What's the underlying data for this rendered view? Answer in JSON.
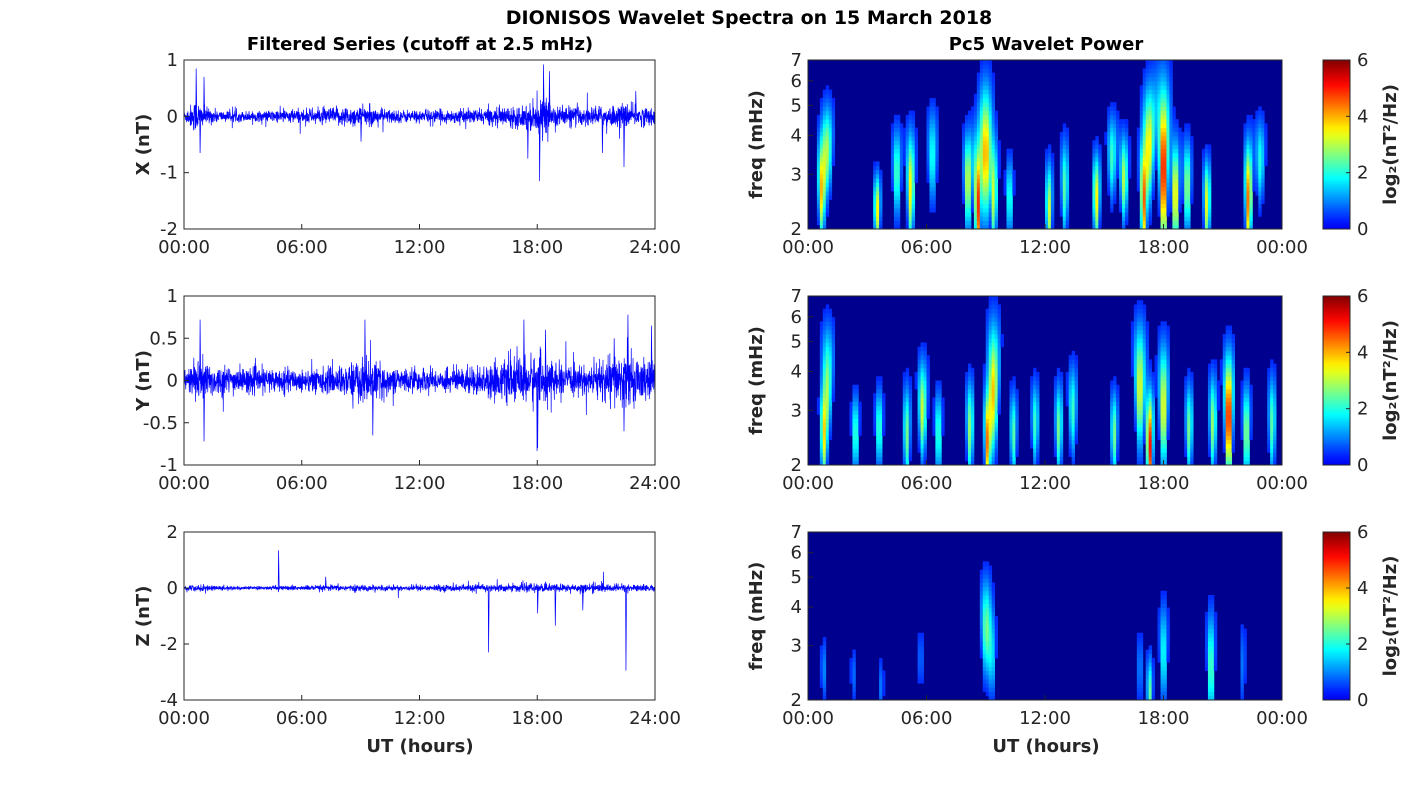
{
  "figure": {
    "title": "DIONISOS Wavelet Spectra on 15 March 2018",
    "left_title": "Filtered Series (cutoff at 2.5 mHz)",
    "right_title": "Pc5 Wavelet Power",
    "xlabel": "UT (hours)"
  },
  "colors": {
    "trace": "#0000ff",
    "spectrum_background": "#00008f",
    "axis": "#262626"
  },
  "chart_data": [
    {
      "type": "line",
      "name": "x-series",
      "ylabel": "X (nT)",
      "xlim": [
        0,
        24
      ],
      "ylim": [
        -2,
        1
      ],
      "x_ticks": [
        "00:00",
        "06:00",
        "12:00",
        "18:00",
        "24:00"
      ],
      "y_ticks": [
        "-2",
        "-1",
        "0",
        "1"
      ],
      "series": [
        {
          "noise_amp": 0.09,
          "envelope": [
            [
              0,
              0.1
            ],
            [
              0.6,
              0.32
            ],
            [
              1.0,
              0.18
            ],
            [
              2,
              0.1
            ],
            [
              4,
              0.1
            ],
            [
              5,
              0.13
            ],
            [
              7,
              0.15
            ],
            [
              8.5,
              0.2
            ],
            [
              9.5,
              0.17
            ],
            [
              11,
              0.12
            ],
            [
              13,
              0.12
            ],
            [
              15,
              0.14
            ],
            [
              17,
              0.2
            ],
            [
              18.2,
              0.32
            ],
            [
              19,
              0.2
            ],
            [
              21,
              0.18
            ],
            [
              22.5,
              0.22
            ],
            [
              24,
              0.16
            ]
          ],
          "spikes": [
            [
              0.6,
              0.85
            ],
            [
              0.8,
              -0.65
            ],
            [
              1.0,
              0.7
            ],
            [
              9.0,
              -0.45
            ],
            [
              17.5,
              -0.75
            ],
            [
              18.1,
              -1.15
            ],
            [
              18.3,
              0.92
            ],
            [
              18.6,
              0.8
            ],
            [
              21.3,
              -0.65
            ],
            [
              22.4,
              -0.9
            ],
            [
              23.0,
              0.45
            ]
          ]
        }
      ]
    },
    {
      "type": "line",
      "name": "y-series",
      "ylabel": "Y (nT)",
      "xlim": [
        0,
        24
      ],
      "ylim": [
        -1,
        1
      ],
      "x_ticks": [
        "00:00",
        "06:00",
        "12:00",
        "18:00",
        "24:00"
      ],
      "y_ticks": [
        "-1",
        "-0.5",
        "0",
        "0.5",
        "1"
      ],
      "series": [
        {
          "noise_amp": 0.09,
          "envelope": [
            [
              0,
              0.12
            ],
            [
              0.8,
              0.3
            ],
            [
              1.5,
              0.2
            ],
            [
              3,
              0.16
            ],
            [
              6,
              0.14
            ],
            [
              8,
              0.18
            ],
            [
              9.2,
              0.3
            ],
            [
              10.5,
              0.16
            ],
            [
              13,
              0.14
            ],
            [
              15,
              0.18
            ],
            [
              17,
              0.28
            ],
            [
              18,
              0.35
            ],
            [
              19,
              0.2
            ],
            [
              20.5,
              0.16
            ],
            [
              21.5,
              0.3
            ],
            [
              22.5,
              0.35
            ],
            [
              24,
              0.2
            ]
          ],
          "spikes": [
            [
              0.8,
              0.72
            ],
            [
              1.0,
              -0.72
            ],
            [
              9.2,
              0.72
            ],
            [
              9.6,
              -0.65
            ],
            [
              17.3,
              0.72
            ],
            [
              18.0,
              -0.8
            ],
            [
              18.4,
              0.6
            ],
            [
              21.9,
              0.5
            ],
            [
              22.6,
              0.78
            ],
            [
              22.4,
              -0.6
            ],
            [
              23.8,
              0.65
            ]
          ]
        }
      ]
    },
    {
      "type": "line",
      "name": "z-series",
      "ylabel": "Z (nT)",
      "xlim": [
        0,
        24
      ],
      "ylim": [
        -4,
        2
      ],
      "x_ticks": [
        "00:00",
        "06:00",
        "12:00",
        "18:00",
        "24:00"
      ],
      "y_ticks": [
        "-4",
        "-2",
        "0",
        "2"
      ],
      "series": [
        {
          "noise_amp": 0.05,
          "envelope": [
            [
              0,
              0.12
            ],
            [
              1,
              0.12
            ],
            [
              3,
              0.06
            ],
            [
              5,
              0.08
            ],
            [
              8,
              0.12
            ],
            [
              10,
              0.1
            ],
            [
              13,
              0.12
            ],
            [
              16,
              0.14
            ],
            [
              18,
              0.16
            ],
            [
              21,
              0.16
            ],
            [
              24,
              0.12
            ]
          ],
          "spikes": [
            [
              4.8,
              1.35
            ],
            [
              7.2,
              0.4
            ],
            [
              15.5,
              -2.3
            ],
            [
              18.0,
              -0.9
            ],
            [
              18.9,
              -1.35
            ],
            [
              20.3,
              -0.8
            ],
            [
              22.5,
              -2.95
            ]
          ]
        }
      ]
    },
    {
      "type": "heatmap",
      "name": "x-wavelet",
      "ylabel": "freq (mHz)",
      "yscale": "log",
      "xlim": [
        0,
        24
      ],
      "ylim": [
        2,
        7
      ],
      "x_ticks": [
        "00:00",
        "06:00",
        "12:00",
        "18:00",
        "00:00"
      ],
      "y_ticks": [
        "2",
        "3",
        "4",
        "5",
        "6",
        "7"
      ],
      "colorbar": {
        "label": "log₂(nT²/Hz)",
        "ticks": [
          "0",
          "2",
          "4",
          "6"
        ],
        "range": [
          0,
          6
        ]
      },
      "blobs": [
        [
          0.7,
          2.7,
          1.0,
          4.0
        ],
        [
          1.0,
          3.6,
          0.9,
          2.5
        ],
        [
          3.5,
          2.3,
          0.5,
          3.6
        ],
        [
          4.5,
          3.0,
          0.9,
          2.4
        ],
        [
          5.2,
          2.7,
          1.2,
          3.6
        ],
        [
          6.3,
          3.4,
          1.0,
          2.0
        ],
        [
          8.1,
          2.8,
          1.0,
          3.4
        ],
        [
          8.6,
          2.4,
          1.5,
          5.0
        ],
        [
          9.0,
          3.4,
          1.7,
          4.0
        ],
        [
          9.4,
          2.6,
          1.2,
          3.2
        ],
        [
          10.2,
          2.5,
          0.7,
          2.2
        ],
        [
          12.2,
          2.3,
          0.9,
          3.2
        ],
        [
          13.0,
          2.7,
          1.0,
          2.4
        ],
        [
          14.6,
          2.5,
          0.8,
          3.6
        ],
        [
          15.4,
          3.4,
          0.8,
          2.2
        ],
        [
          16.0,
          2.9,
          0.8,
          3.0
        ],
        [
          17.0,
          2.5,
          1.3,
          4.6
        ],
        [
          17.3,
          3.8,
          1.3,
          3.2
        ],
        [
          18.0,
          3.0,
          2.2,
          5.5
        ],
        [
          18.6,
          2.5,
          1.2,
          4.0
        ],
        [
          19.2,
          2.7,
          0.9,
          3.0
        ],
        [
          20.2,
          2.4,
          0.8,
          3.4
        ],
        [
          22.3,
          2.5,
          1.2,
          4.5
        ],
        [
          22.9,
          3.3,
          0.8,
          2.0
        ]
      ]
    },
    {
      "type": "heatmap",
      "name": "y-wavelet",
      "ylabel": "freq (mHz)",
      "yscale": "log",
      "xlim": [
        0,
        24
      ],
      "ylim": [
        2,
        7
      ],
      "x_ticks": [
        "00:00",
        "06:00",
        "12:00",
        "18:00",
        "00:00"
      ],
      "y_ticks": [
        "2",
        "3",
        "4",
        "5",
        "6",
        "7"
      ],
      "colorbar": {
        "label": "log₂(nT²/Hz)",
        "ticks": [
          "0",
          "2",
          "4",
          "6"
        ],
        "range": [
          0,
          6
        ]
      },
      "blobs": [
        [
          0.8,
          2.5,
          0.9,
          3.6
        ],
        [
          1.0,
          3.8,
          1.2,
          2.4
        ],
        [
          2.4,
          2.5,
          0.7,
          2.4
        ],
        [
          3.6,
          2.6,
          0.7,
          2.4
        ],
        [
          5.0,
          2.5,
          1.0,
          2.6
        ],
        [
          5.8,
          3.0,
          1.0,
          3.2
        ],
        [
          6.6,
          2.5,
          0.8,
          2.4
        ],
        [
          8.2,
          2.6,
          1.0,
          2.8
        ],
        [
          9.1,
          2.4,
          1.0,
          4.5
        ],
        [
          9.4,
          3.5,
          1.6,
          3.6
        ],
        [
          10.4,
          2.5,
          0.8,
          2.4
        ],
        [
          11.5,
          2.7,
          0.8,
          2.2
        ],
        [
          12.7,
          2.6,
          0.9,
          2.6
        ],
        [
          13.4,
          3.0,
          0.9,
          2.2
        ],
        [
          15.5,
          2.5,
          0.8,
          2.6
        ],
        [
          16.8,
          3.5,
          1.5,
          3.4
        ],
        [
          17.3,
          2.3,
          1.1,
          5.2
        ],
        [
          18.0,
          3.0,
          1.5,
          3.6
        ],
        [
          19.3,
          2.6,
          0.9,
          2.6
        ],
        [
          20.5,
          2.7,
          1.0,
          2.8
        ],
        [
          21.3,
          2.8,
          1.4,
          5.5
        ],
        [
          22.2,
          2.5,
          1.0,
          3.0
        ],
        [
          23.5,
          2.7,
          1.0,
          2.4
        ]
      ]
    },
    {
      "type": "heatmap",
      "name": "z-wavelet",
      "ylabel": "freq (mHz)",
      "yscale": "log",
      "xlim": [
        0,
        24
      ],
      "ylim": [
        2,
        7
      ],
      "x_ticks": [
        "00:00",
        "06:00",
        "12:00",
        "18:00",
        "00:00"
      ],
      "y_ticks": [
        "2",
        "3",
        "4",
        "5",
        "6",
        "7"
      ],
      "colorbar": {
        "label": "log₂(nT²/Hz)",
        "ticks": [
          "0",
          "2",
          "4",
          "6"
        ],
        "range": [
          0,
          6
        ]
      },
      "blobs": [
        [
          0.8,
          2.5,
          0.5,
          1.0
        ],
        [
          2.3,
          2.4,
          0.4,
          0.8
        ],
        [
          3.7,
          2.2,
          0.4,
          0.9
        ],
        [
          5.7,
          2.7,
          0.5,
          0.8
        ],
        [
          9.0,
          3.4,
          1.1,
          2.4
        ],
        [
          9.3,
          2.8,
          0.9,
          1.8
        ],
        [
          16.8,
          2.5,
          0.7,
          1.0
        ],
        [
          17.3,
          2.1,
          0.6,
          2.5
        ],
        [
          18.0,
          2.8,
          1.1,
          2.0
        ],
        [
          20.4,
          2.5,
          1.3,
          2.6
        ],
        [
          22.0,
          2.6,
          0.9,
          0.9
        ]
      ]
    }
  ]
}
